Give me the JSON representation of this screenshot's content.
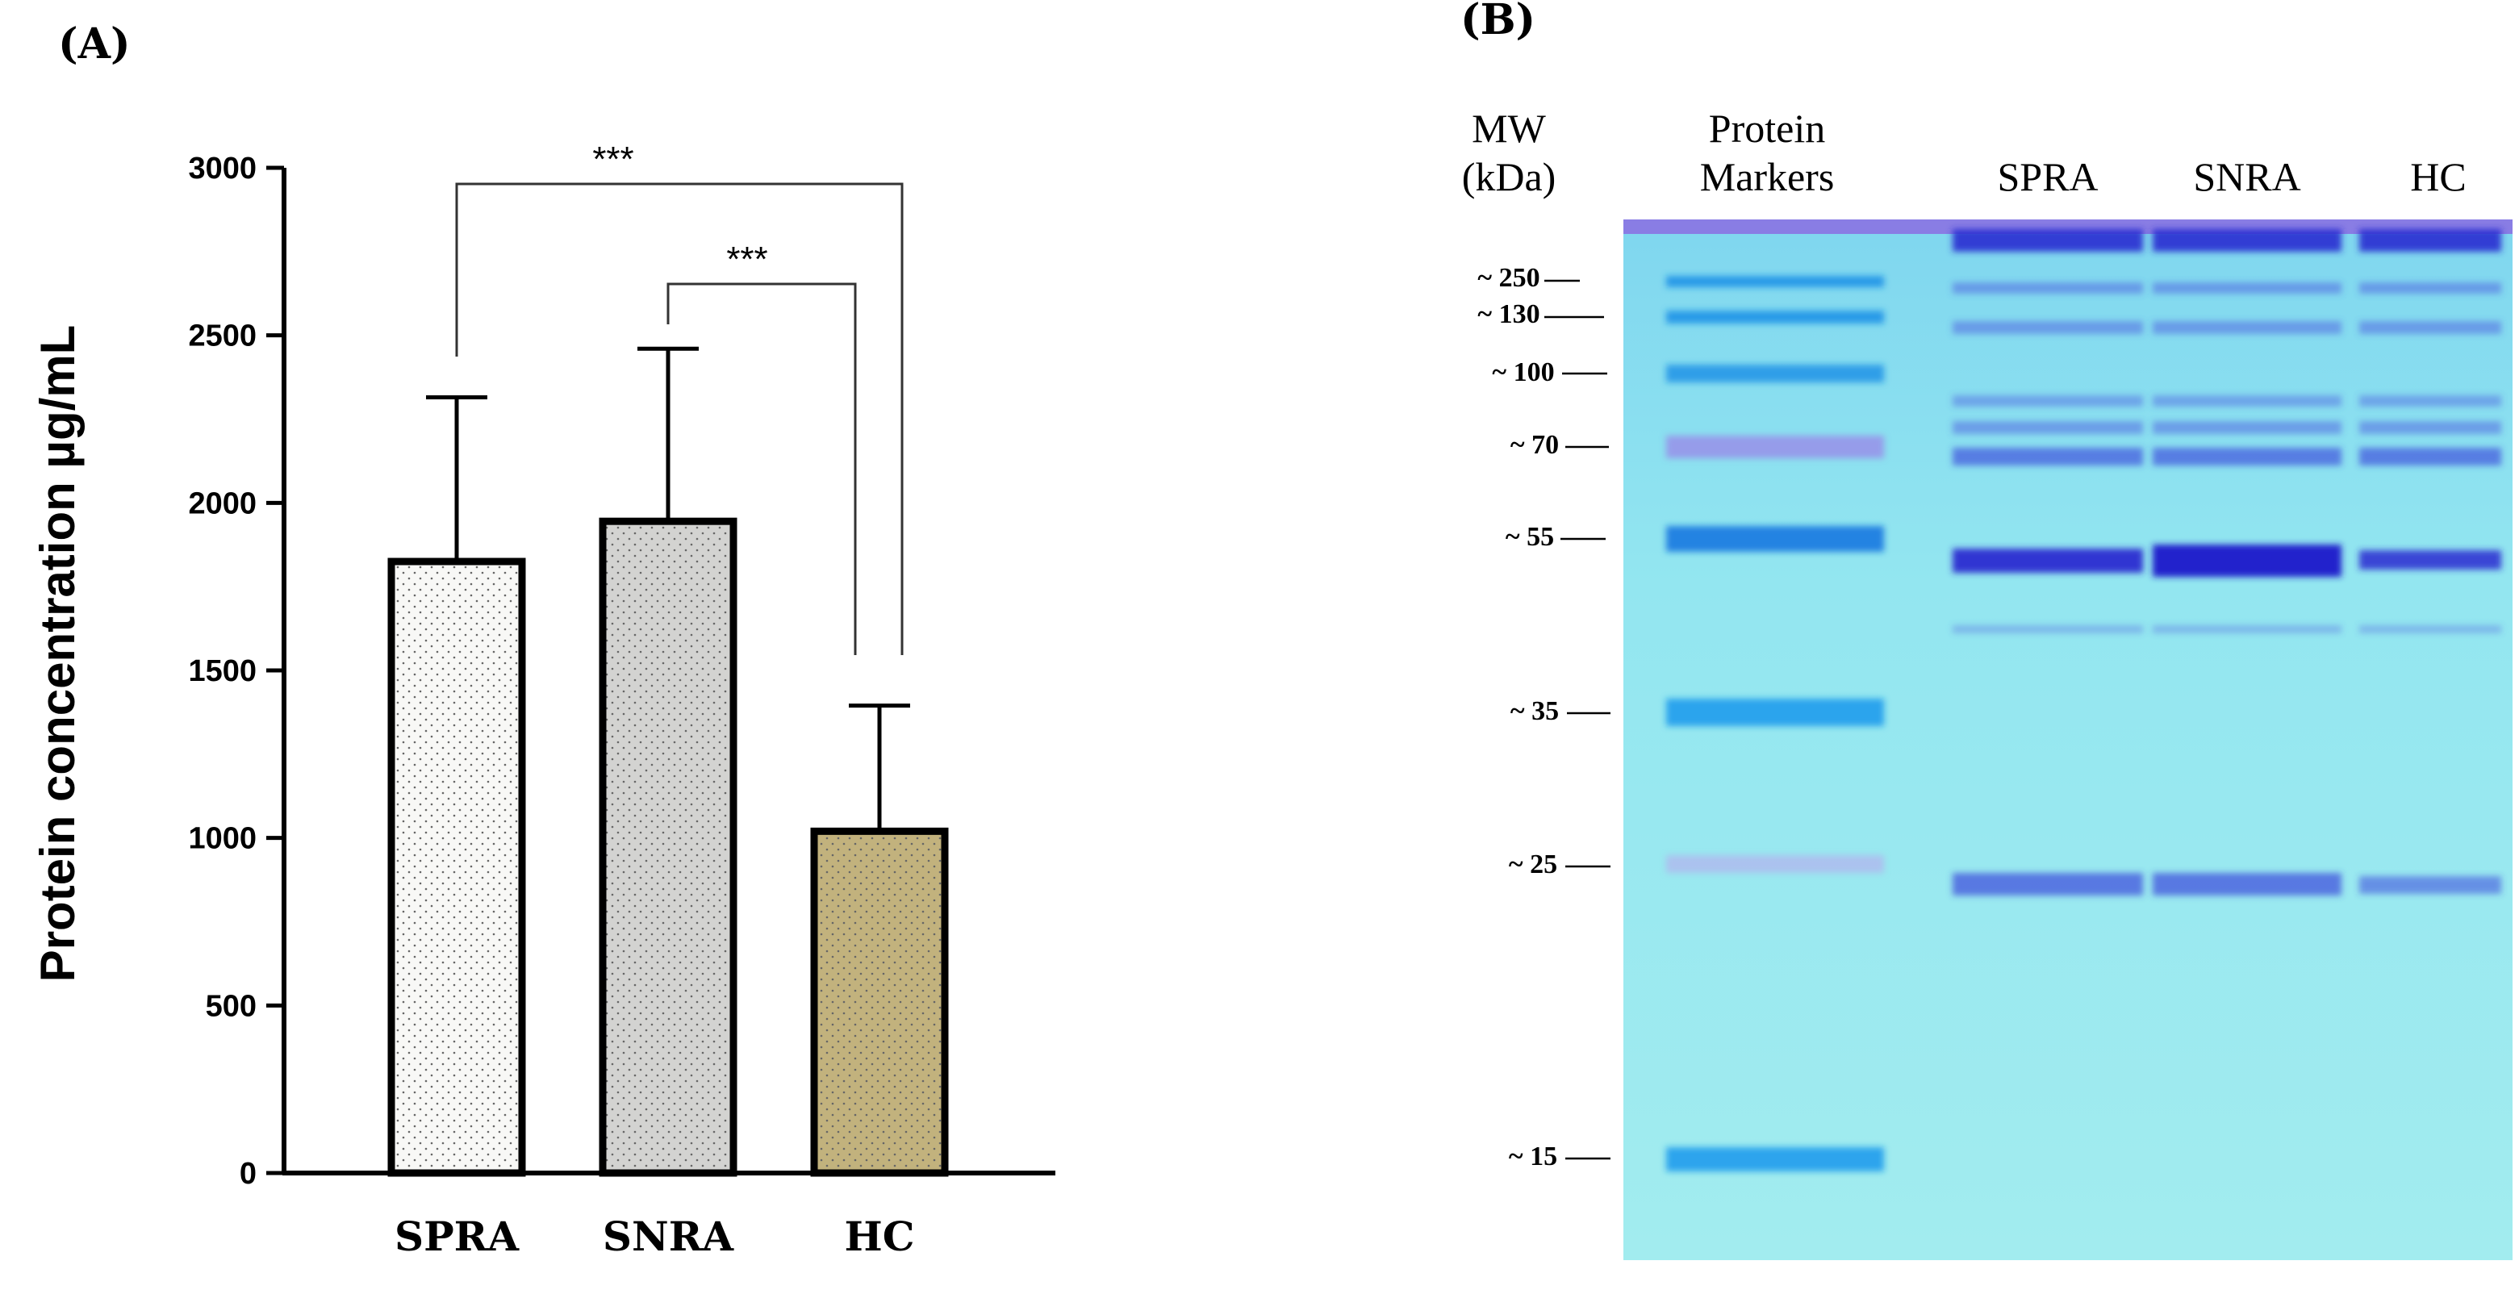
{
  "panel_a": {
    "label": "(A)",
    "chart_data": {
      "type": "bar",
      "title": "",
      "xlabel": "",
      "ylabel": "Protein concentration µg/mL",
      "ylim": [
        0,
        3000
      ],
      "yticks": [
        0,
        500,
        1000,
        1500,
        2000,
        2500,
        3000
      ],
      "categories": [
        "SPRA",
        "SNRA",
        "HC"
      ],
      "values": [
        1825,
        1945,
        1020
      ],
      "error_upper": [
        490,
        515,
        375
      ],
      "bar_colors": [
        "#f8f8f6",
        "#d3d3d1",
        "#c2b27d"
      ],
      "significance": [
        {
          "from": "SPRA",
          "to": "HC",
          "label": "***"
        },
        {
          "from": "SNRA",
          "to": "HC",
          "label": "***"
        }
      ]
    }
  },
  "panel_b": {
    "label": "(B)",
    "mw_header_line1": "MW",
    "mw_header_line2": "(kDa)",
    "markers_header_line1": "Protein",
    "markers_header_line2": "Markers",
    "lanes": [
      "SPRA",
      "SNRA",
      "HC"
    ],
    "mw_markers": [
      "~ 250",
      "~ 130",
      "~ 100",
      "~ 70",
      "~ 55",
      "~ 35",
      "~ 25",
      "~ 15"
    ],
    "gel_background_color": "#93e6f0",
    "marker_band_color": "#1a8fe6",
    "sample_band_color": "#3a3fd8"
  }
}
